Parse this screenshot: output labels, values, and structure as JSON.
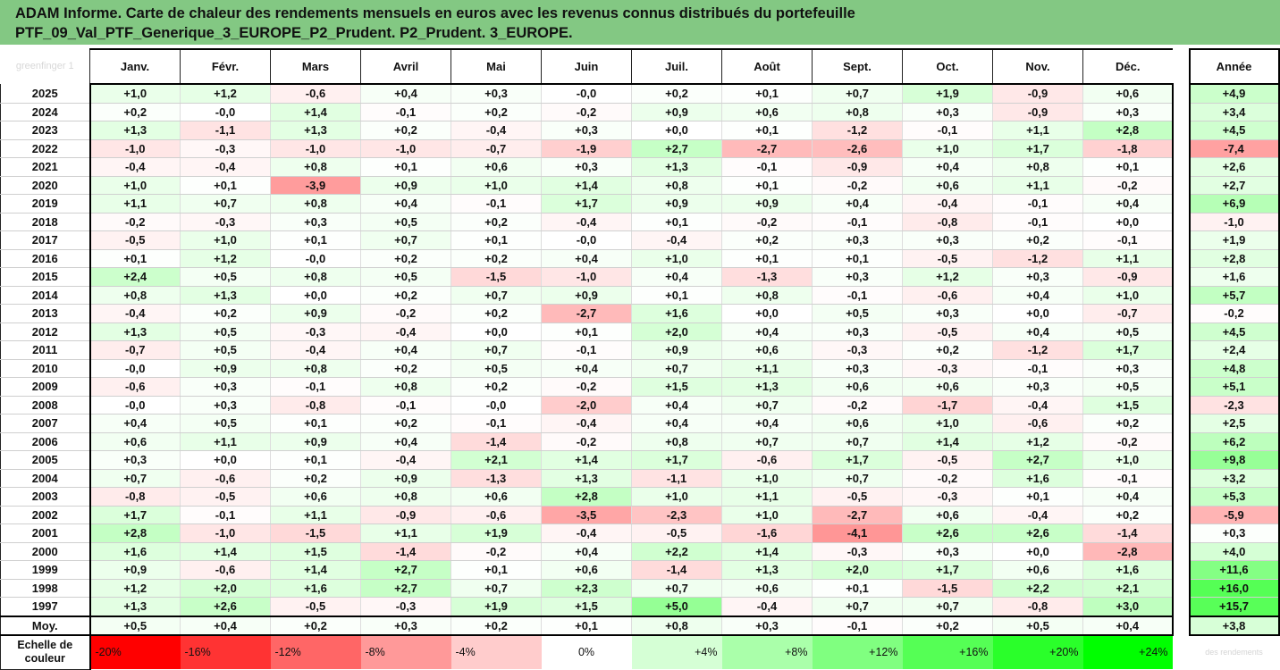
{
  "title": {
    "line1": "ADAM Informe. Carte de chaleur des rendements mensuels en euros avec les revenus connus distribués du portefeuille",
    "line2": "PTF_09_Val_PTF_Generique_3_EUROPE_P2_Prudent. P2_Prudent. 3_EUROPE."
  },
  "corner_watermark": "greenfinger 1",
  "logo_watermark": "des rendements",
  "colors": {
    "title_bg": "#83c883",
    "negative": "#ff0000",
    "positive": "#00ff00",
    "neutral": "#ffffff"
  },
  "chart_data": {
    "type": "heatmap",
    "columns": [
      "Janv.",
      "Févr.",
      "Mars",
      "Avril",
      "Mai",
      "Juin",
      "Juil.",
      "Août",
      "Sept.",
      "Oct.",
      "Nov.",
      "Déc."
    ],
    "year_column": "Année",
    "rows": [
      {
        "label": "2025",
        "values": [
          "+1,0",
          "+1,2",
          "-0,6",
          "+0,4",
          "+0,3",
          "-0,0",
          "+0,2",
          "+0,1",
          "+0,7",
          "+1,9",
          "-0,9",
          "+0,6"
        ],
        "year": "+4,9"
      },
      {
        "label": "2024",
        "values": [
          "+0,2",
          "-0,0",
          "+1,4",
          "-0,1",
          "+0,2",
          "-0,2",
          "+0,9",
          "+0,6",
          "+0,8",
          "+0,3",
          "-0,9",
          "+0,3"
        ],
        "year": "+3,4"
      },
      {
        "label": "2023",
        "values": [
          "+1,3",
          "-1,1",
          "+1,3",
          "+0,2",
          "-0,4",
          "+0,3",
          "+0,0",
          "+0,1",
          "-1,2",
          "-0,1",
          "+1,1",
          "+2,8"
        ],
        "year": "+4,5"
      },
      {
        "label": "2022",
        "values": [
          "-1,0",
          "-0,3",
          "-1,0",
          "-1,0",
          "-0,7",
          "-1,9",
          "+2,7",
          "-2,7",
          "-2,6",
          "+1,0",
          "+1,7",
          "-1,8"
        ],
        "year": "-7,4"
      },
      {
        "label": "2021",
        "values": [
          "-0,4",
          "-0,4",
          "+0,8",
          "+0,1",
          "+0,6",
          "+0,3",
          "+1,3",
          "-0,1",
          "-0,9",
          "+0,4",
          "+0,8",
          "+0,1"
        ],
        "year": "+2,6"
      },
      {
        "label": "2020",
        "values": [
          "+1,0",
          "+0,1",
          "-3,9",
          "+0,9",
          "+1,0",
          "+1,4",
          "+0,8",
          "+0,1",
          "-0,2",
          "+0,6",
          "+1,1",
          "-0,2"
        ],
        "year": "+2,7"
      },
      {
        "label": "2019",
        "values": [
          "+1,1",
          "+0,7",
          "+0,8",
          "+0,4",
          "-0,1",
          "+1,7",
          "+0,9",
          "+0,9",
          "+0,4",
          "-0,4",
          "-0,1",
          "+0,4"
        ],
        "year": "+6,9"
      },
      {
        "label": "2018",
        "values": [
          "-0,2",
          "-0,3",
          "+0,3",
          "+0,5",
          "+0,2",
          "-0,4",
          "+0,1",
          "-0,2",
          "-0,1",
          "-0,8",
          "-0,1",
          "+0,0"
        ],
        "year": "-1,0"
      },
      {
        "label": "2017",
        "values": [
          "-0,5",
          "+1,0",
          "+0,1",
          "+0,7",
          "+0,1",
          "-0,0",
          "-0,4",
          "+0,2",
          "+0,3",
          "+0,3",
          "+0,2",
          "-0,1"
        ],
        "year": "+1,9"
      },
      {
        "label": "2016",
        "values": [
          "+0,1",
          "+1,2",
          "-0,0",
          "+0,2",
          "+0,2",
          "+0,4",
          "+1,0",
          "+0,1",
          "+0,1",
          "-0,5",
          "-1,2",
          "+1,1"
        ],
        "year": "+2,8"
      },
      {
        "label": "2015",
        "values": [
          "+2,4",
          "+0,5",
          "+0,8",
          "+0,5",
          "-1,5",
          "-1,0",
          "+0,4",
          "-1,3",
          "+0,3",
          "+1,2",
          "+0,3",
          "-0,9"
        ],
        "year": "+1,6"
      },
      {
        "label": "2014",
        "values": [
          "+0,8",
          "+1,3",
          "+0,0",
          "+0,2",
          "+0,7",
          "+0,9",
          "+0,1",
          "+0,8",
          "-0,1",
          "-0,6",
          "+0,4",
          "+1,0"
        ],
        "year": "+5,7"
      },
      {
        "label": "2013",
        "values": [
          "-0,4",
          "+0,2",
          "+0,9",
          "-0,2",
          "+0,2",
          "-2,7",
          "+1,6",
          "+0,0",
          "+0,5",
          "+0,3",
          "+0,0",
          "-0,7"
        ],
        "year": "-0,2"
      },
      {
        "label": "2012",
        "values": [
          "+1,3",
          "+0,5",
          "-0,3",
          "-0,4",
          "+0,0",
          "+0,1",
          "+2,0",
          "+0,4",
          "+0,3",
          "-0,5",
          "+0,4",
          "+0,5"
        ],
        "year": "+4,5"
      },
      {
        "label": "2011",
        "values": [
          "-0,7",
          "+0,5",
          "-0,4",
          "+0,4",
          "+0,7",
          "-0,1",
          "+0,9",
          "+0,6",
          "-0,3",
          "+0,2",
          "-1,2",
          "+1,7"
        ],
        "year": "+2,4"
      },
      {
        "label": "2010",
        "values": [
          "-0,0",
          "+0,9",
          "+0,8",
          "+0,2",
          "+0,5",
          "+0,4",
          "+0,7",
          "+1,1",
          "+0,3",
          "-0,3",
          "-0,1",
          "+0,3"
        ],
        "year": "+4,8"
      },
      {
        "label": "2009",
        "values": [
          "-0,6",
          "+0,3",
          "-0,1",
          "+0,8",
          "+0,2",
          "-0,2",
          "+1,5",
          "+1,3",
          "+0,6",
          "+0,6",
          "+0,3",
          "+0,5"
        ],
        "year": "+5,1"
      },
      {
        "label": "2008",
        "values": [
          "-0,0",
          "+0,3",
          "-0,8",
          "-0,1",
          "-0,0",
          "-2,0",
          "+0,4",
          "+0,7",
          "-0,2",
          "-1,7",
          "-0,4",
          "+1,5"
        ],
        "year": "-2,3"
      },
      {
        "label": "2007",
        "values": [
          "+0,4",
          "+0,5",
          "+0,1",
          "+0,2",
          "-0,1",
          "-0,4",
          "+0,4",
          "+0,4",
          "+0,6",
          "+1,0",
          "-0,6",
          "+0,2"
        ],
        "year": "+2,5"
      },
      {
        "label": "2006",
        "values": [
          "+0,6",
          "+1,1",
          "+0,9",
          "+0,4",
          "-1,4",
          "-0,2",
          "+0,8",
          "+0,7",
          "+0,7",
          "+1,4",
          "+1,2",
          "-0,2"
        ],
        "year": "+6,2"
      },
      {
        "label": "2005",
        "values": [
          "+0,3",
          "+0,0",
          "+0,1",
          "-0,4",
          "+2,1",
          "+1,4",
          "+1,7",
          "-0,6",
          "+1,7",
          "-0,5",
          "+2,7",
          "+1,0"
        ],
        "year": "+9,8"
      },
      {
        "label": "2004",
        "values": [
          "+0,7",
          "-0,6",
          "+0,2",
          "+0,9",
          "-1,3",
          "+1,3",
          "-1,1",
          "+1,0",
          "+0,7",
          "-0,2",
          "+1,6",
          "-0,1"
        ],
        "year": "+3,2"
      },
      {
        "label": "2003",
        "values": [
          "-0,8",
          "-0,5",
          "+0,6",
          "+0,8",
          "+0,6",
          "+2,8",
          "+1,0",
          "+1,1",
          "-0,5",
          "-0,3",
          "+0,1",
          "+0,4"
        ],
        "year": "+5,3"
      },
      {
        "label": "2002",
        "values": [
          "+1,7",
          "-0,1",
          "+1,1",
          "-0,9",
          "-0,6",
          "-3,5",
          "-2,3",
          "+1,0",
          "-2,7",
          "+0,6",
          "-0,4",
          "+0,2"
        ],
        "year": "-5,9"
      },
      {
        "label": "2001",
        "values": [
          "+2,8",
          "-1,0",
          "-1,5",
          "+1,1",
          "+1,9",
          "-0,4",
          "-0,5",
          "-1,6",
          "-4,1",
          "+2,6",
          "+2,6",
          "-1,4"
        ],
        "year": "+0,3"
      },
      {
        "label": "2000",
        "values": [
          "+1,6",
          "+1,4",
          "+1,5",
          "-1,4",
          "-0,2",
          "+0,4",
          "+2,2",
          "+1,4",
          "-0,3",
          "+0,3",
          "+0,0",
          "-2,8"
        ],
        "year": "+4,0"
      },
      {
        "label": "1999",
        "values": [
          "+0,9",
          "-0,6",
          "+1,4",
          "+2,7",
          "+0,1",
          "+0,6",
          "-1,4",
          "+1,3",
          "+2,0",
          "+1,7",
          "+0,6",
          "+1,6"
        ],
        "year": "+11,6"
      },
      {
        "label": "1998",
        "values": [
          "+1,2",
          "+2,0",
          "+1,6",
          "+2,7",
          "+0,7",
          "+2,3",
          "+0,7",
          "+0,6",
          "+0,1",
          "-1,5",
          "+2,2",
          "+2,1"
        ],
        "year": "+16,0"
      },
      {
        "label": "1997",
        "values": [
          "+1,3",
          "+2,6",
          "-0,5",
          "-0,3",
          "+1,9",
          "+1,5",
          "+5,0",
          "-0,4",
          "+0,7",
          "+0,7",
          "-0,8",
          "+3,0"
        ],
        "year": "+15,7"
      }
    ],
    "average": {
      "label": "Moy.",
      "values": [
        "+0,5",
        "+0,4",
        "+0,2",
        "+0,3",
        "+0,2",
        "+0,1",
        "+0,8",
        "+0,3",
        "-0,1",
        "+0,2",
        "+0,5",
        "+0,4"
      ],
      "year": "+3,8"
    },
    "scale": {
      "label_line1": "Echelle de",
      "label_line2": "couleur",
      "stops": [
        "-20%",
        "-16%",
        "-12%",
        "-8%",
        "-4%",
        "0%",
        "+4%",
        "+8%",
        "+12%",
        "+16%",
        "+20%",
        "+24%"
      ]
    }
  }
}
